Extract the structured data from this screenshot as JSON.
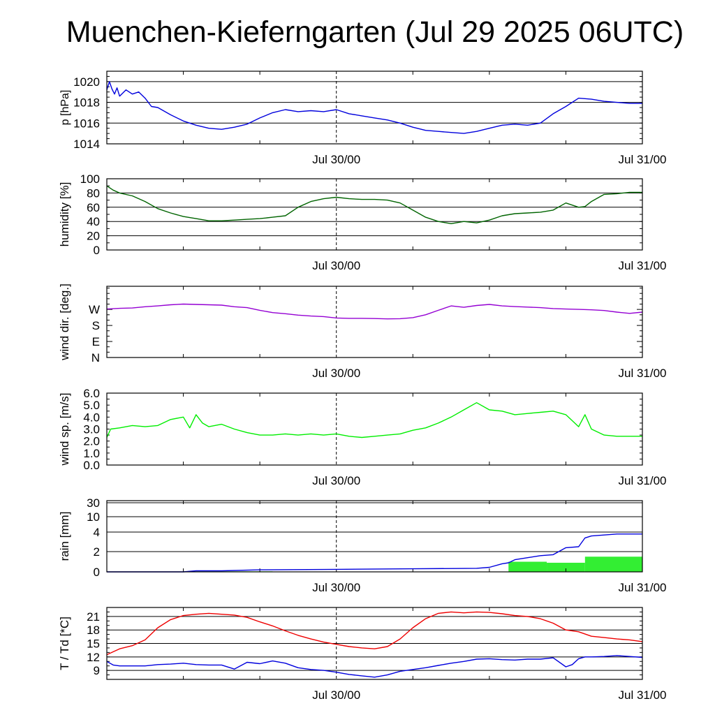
{
  "title": "Muenchen-Kieferngarten (Jul 29 2025 06UTC)",
  "colors": {
    "pressure": "#0000dd",
    "humidity": "#006400",
    "wind_dir": "#9400d3",
    "wind_speed": "#00ee00",
    "rain_bar": "#33ee33",
    "rain_line": "#0000dd",
    "temperature": "#ee0000",
    "dewpoint": "#0000dd"
  },
  "chart_data": [
    {
      "type": "line",
      "ylabel": "p [hPa]",
      "x_unit": "hours since Jul 29 06UTC",
      "xlim": [
        0,
        42
      ],
      "ylim": [
        1014,
        1021
      ],
      "yticks": [
        "1014",
        "1016",
        "1018",
        "1020"
      ],
      "ytick_values": [
        1014,
        1016,
        1018,
        1020
      ],
      "grid_values": [
        1016,
        1018,
        1020
      ],
      "xtick_labels": [
        "Jul 30/00",
        "Jul 31/00"
      ],
      "xtick_values": [
        18,
        42
      ],
      "series": [
        {
          "color_key": "pressure",
          "x": [
            0,
            0.2,
            0.4,
            0.6,
            0.8,
            1,
            1.5,
            2,
            2.5,
            3,
            3.5,
            4,
            5,
            6,
            7,
            8,
            9,
            10,
            11,
            12,
            13,
            14,
            15,
            16,
            17,
            18,
            19,
            20,
            21,
            22,
            23,
            24,
            25,
            26,
            27,
            28,
            29,
            30,
            31,
            32,
            33,
            34,
            35,
            36,
            37,
            38,
            39,
            40,
            41,
            42
          ],
          "y": [
            1019.2,
            1020.0,
            1019.3,
            1018.8,
            1019.4,
            1018.6,
            1019.2,
            1018.8,
            1019.0,
            1018.4,
            1017.6,
            1017.5,
            1016.8,
            1016.2,
            1015.8,
            1015.5,
            1015.4,
            1015.6,
            1015.9,
            1016.5,
            1017.0,
            1017.3,
            1017.1,
            1017.2,
            1017.1,
            1017.3,
            1016.9,
            1016.7,
            1016.5,
            1016.3,
            1016.0,
            1015.6,
            1015.3,
            1015.2,
            1015.1,
            1015.0,
            1015.2,
            1015.5,
            1015.8,
            1015.9,
            1015.8,
            1016.0,
            1016.9,
            1017.6,
            1018.4,
            1018.3,
            1018.1,
            1018.0,
            1017.9,
            1017.9
          ]
        }
      ]
    },
    {
      "type": "line",
      "ylabel": "humidity [%]",
      "xlim": [
        0,
        42
      ],
      "ylim": [
        0,
        100
      ],
      "yticks": [
        "0",
        "20",
        "40",
        "60",
        "80",
        "100"
      ],
      "ytick_values": [
        0,
        20,
        40,
        60,
        80,
        100
      ],
      "grid_values": [
        20,
        40,
        60,
        80,
        100
      ],
      "xtick_labels": [
        "Jul 30/00",
        "Jul 31/00"
      ],
      "xtick_values": [
        18,
        42
      ],
      "series": [
        {
          "color_key": "humidity",
          "x": [
            0,
            0.5,
            1,
            2,
            3,
            4,
            5,
            6,
            7,
            8,
            9,
            10,
            11,
            12,
            13,
            14,
            15,
            16,
            17,
            18,
            19,
            20,
            21,
            22,
            23,
            24,
            25,
            26,
            27,
            28,
            29,
            30,
            31,
            32,
            33,
            34,
            35,
            36,
            37,
            37.5,
            38,
            39,
            40,
            41,
            42
          ],
          "y": [
            90,
            84,
            80,
            76,
            68,
            58,
            52,
            47,
            44,
            41,
            41,
            42,
            43,
            44,
            46,
            48,
            60,
            68,
            72,
            74,
            72,
            71,
            71,
            70,
            66,
            56,
            46,
            40,
            37,
            40,
            38,
            42,
            48,
            51,
            52,
            53,
            56,
            66,
            60,
            61,
            68,
            78,
            79,
            81,
            81
          ]
        }
      ]
    },
    {
      "type": "line",
      "ylabel": "wind dir. [deg.]",
      "xlim": [
        0,
        42
      ],
      "ylim": [
        0,
        400
      ],
      "yticks": [
        "N",
        "E",
        "S",
        "W"
      ],
      "ytick_values": [
        0,
        90,
        180,
        270
      ],
      "grid_values": [],
      "xtick_labels": [
        "Jul 30/00",
        "Jul 31/00"
      ],
      "xtick_values": [
        18,
        42
      ],
      "series": [
        {
          "color_key": "wind_dir",
          "x": [
            0,
            1,
            2,
            3,
            4,
            5,
            6,
            7,
            8,
            9,
            10,
            11,
            12,
            13,
            14,
            15,
            16,
            17,
            18,
            19,
            20,
            21,
            22,
            23,
            24,
            25,
            26,
            27,
            28,
            29,
            30,
            31,
            32,
            33,
            34,
            35,
            36,
            37,
            38,
            39,
            40,
            41,
            42
          ],
          "y": [
            272,
            276,
            278,
            285,
            290,
            296,
            300,
            298,
            296,
            294,
            285,
            280,
            265,
            252,
            246,
            238,
            233,
            230,
            222,
            220,
            220,
            219,
            217,
            218,
            224,
            240,
            265,
            290,
            282,
            292,
            298,
            290,
            286,
            283,
            280,
            275,
            272,
            270,
            268,
            264,
            255,
            248,
            255
          ]
        }
      ]
    },
    {
      "type": "line",
      "ylabel": "wind sp. [m/s]",
      "xlim": [
        0,
        42
      ],
      "ylim": [
        0,
        6
      ],
      "yticks": [
        "0.0",
        "1.0",
        "2.0",
        "3.0",
        "4.0",
        "5.0",
        "6.0"
      ],
      "ytick_values": [
        0,
        1,
        2,
        3,
        4,
        5,
        6
      ],
      "grid_values": [],
      "xtick_labels": [
        "Jul 30/00",
        "Jul 31/00"
      ],
      "xtick_values": [
        18,
        42
      ],
      "series": [
        {
          "color_key": "wind_speed",
          "x": [
            0,
            0.3,
            1,
            2,
            3,
            4,
            5,
            6,
            6.5,
            7,
            7.5,
            8,
            9,
            10,
            11,
            12,
            13,
            14,
            15,
            16,
            17,
            18,
            19,
            20,
            21,
            22,
            23,
            24,
            25,
            26,
            27,
            28,
            29,
            30,
            31,
            32,
            33,
            34,
            35,
            36,
            37,
            37.5,
            38,
            39,
            40,
            41,
            42
          ],
          "y": [
            2.3,
            3.0,
            3.1,
            3.3,
            3.2,
            3.3,
            3.8,
            4.0,
            3.1,
            4.2,
            3.5,
            3.2,
            3.4,
            3.0,
            2.7,
            2.5,
            2.5,
            2.6,
            2.5,
            2.6,
            2.5,
            2.6,
            2.4,
            2.3,
            2.4,
            2.5,
            2.6,
            2.9,
            3.1,
            3.5,
            4.0,
            4.6,
            5.2,
            4.6,
            4.5,
            4.2,
            4.3,
            4.4,
            4.5,
            4.2,
            3.2,
            4.2,
            3.0,
            2.5,
            2.4,
            2.4,
            2.4
          ]
        }
      ]
    },
    {
      "type": "bar+line",
      "ylabel": "rain [mm]",
      "xlim": [
        0,
        42
      ],
      "ylim": [
        0,
        35
      ],
      "yticks": [
        "0",
        "2",
        "4",
        "10",
        "30"
      ],
      "ytick_values": [
        0,
        2,
        4,
        10,
        30
      ],
      "grid_values": [
        2,
        4,
        10,
        30
      ],
      "xtick_labels": [
        "Jul 30/00",
        "Jul 31/00"
      ],
      "xtick_values": [
        18,
        42
      ],
      "bars": {
        "color_key": "rain_bar",
        "intervals": [
          [
            6,
            13,
            0.05
          ],
          [
            31.5,
            34.5,
            1.0
          ],
          [
            34.5,
            37.5,
            0.9
          ],
          [
            37.5,
            42,
            1.5
          ]
        ]
      },
      "series": [
        {
          "color_key": "rain_line",
          "x": [
            0,
            6,
            7,
            9,
            12,
            18,
            24,
            29,
            30,
            31,
            31.5,
            32,
            33,
            34,
            35,
            36,
            37,
            37.5,
            38,
            39,
            40,
            41,
            42
          ],
          "y": [
            0,
            0,
            0.1,
            0.1,
            0.2,
            0.25,
            0.3,
            0.35,
            0.45,
            0.8,
            0.9,
            1.2,
            1.4,
            1.6,
            1.7,
            2.4,
            2.5,
            3.4,
            3.6,
            3.7,
            3.8,
            3.8,
            3.8
          ]
        }
      ]
    },
    {
      "type": "line",
      "ylabel": "T / Td [*C]",
      "xlim": [
        0,
        42
      ],
      "ylim": [
        7,
        23
      ],
      "yticks": [
        "9",
        "12",
        "15",
        "18",
        "21"
      ],
      "ytick_values": [
        9,
        12,
        15,
        18,
        21
      ],
      "grid_values": [
        9,
        12,
        15,
        18,
        21
      ],
      "xtick_labels": [
        "Jul 30/00",
        "Jul 31/00"
      ],
      "xtick_values": [
        18,
        42
      ],
      "series": [
        {
          "name": "T",
          "color_key": "temperature",
          "x": [
            0,
            1,
            2,
            3,
            4,
            5,
            6,
            7,
            8,
            9,
            10,
            11,
            12,
            13,
            14,
            15,
            16,
            17,
            18,
            19,
            20,
            21,
            22,
            23,
            24,
            25,
            26,
            27,
            28,
            29,
            30,
            31,
            32,
            33,
            34,
            35,
            36,
            37,
            38,
            39,
            40,
            41,
            42
          ],
          "y": [
            12.5,
            13.8,
            14.5,
            15.8,
            18.5,
            20.3,
            21.2,
            21.5,
            21.7,
            21.5,
            21.3,
            20.8,
            19.8,
            18.9,
            17.8,
            16.8,
            16.0,
            15.3,
            14.8,
            14.3,
            14.0,
            13.8,
            14.3,
            16.0,
            18.5,
            20.5,
            21.7,
            22.0,
            21.8,
            22.0,
            21.9,
            21.6,
            21.2,
            21.0,
            20.5,
            19.5,
            18.0,
            17.6,
            16.6,
            16.3,
            16.0,
            15.8,
            15.4
          ]
        },
        {
          "name": "Td",
          "color_key": "dewpoint",
          "x": [
            0,
            0.5,
            1,
            2,
            3,
            4,
            5,
            6,
            7,
            8,
            9,
            10,
            11,
            12,
            13,
            14,
            15,
            16,
            17,
            18,
            19,
            20,
            21,
            22,
            23,
            24,
            25,
            26,
            27,
            28,
            29,
            30,
            31,
            32,
            33,
            34,
            35,
            36,
            36.5,
            37,
            37.5,
            38,
            39,
            40,
            41,
            42
          ],
          "y": [
            11,
            10.2,
            10.0,
            10.0,
            10.0,
            10.3,
            10.4,
            10.6,
            10.3,
            10.2,
            10.2,
            9.3,
            10.8,
            10.5,
            11.1,
            10.6,
            9.6,
            9.2,
            9.0,
            8.6,
            8.1,
            7.8,
            7.5,
            8.0,
            8.8,
            9.2,
            9.6,
            10.1,
            10.6,
            11.0,
            11.5,
            11.6,
            11.4,
            11.3,
            11.5,
            11.5,
            11.8,
            9.8,
            10.3,
            11.6,
            12.0,
            12.0,
            12.1,
            12.3,
            12.1,
            11.9
          ]
        }
      ]
    }
  ]
}
